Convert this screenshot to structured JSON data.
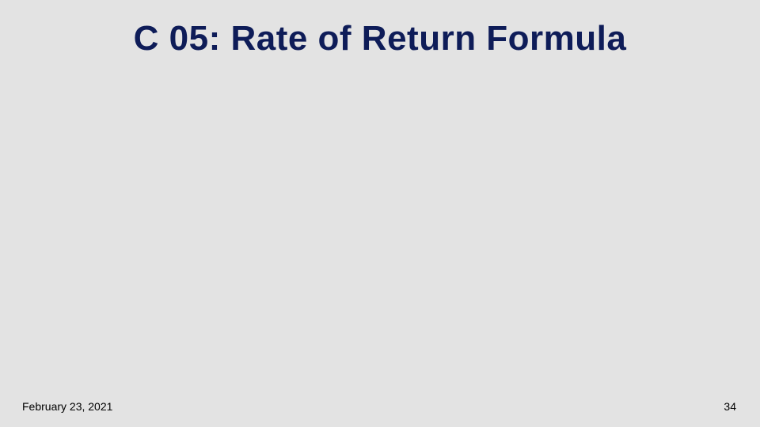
{
  "slide": {
    "title": "C 05: Rate of Return Formula",
    "title_color": "#0e1c58",
    "title_fontsize": 44,
    "background_color": "#e3e3e3"
  },
  "footer": {
    "date": "February 23, 2021",
    "page_number": "34",
    "font_color": "#000000",
    "fontsize": 14
  }
}
